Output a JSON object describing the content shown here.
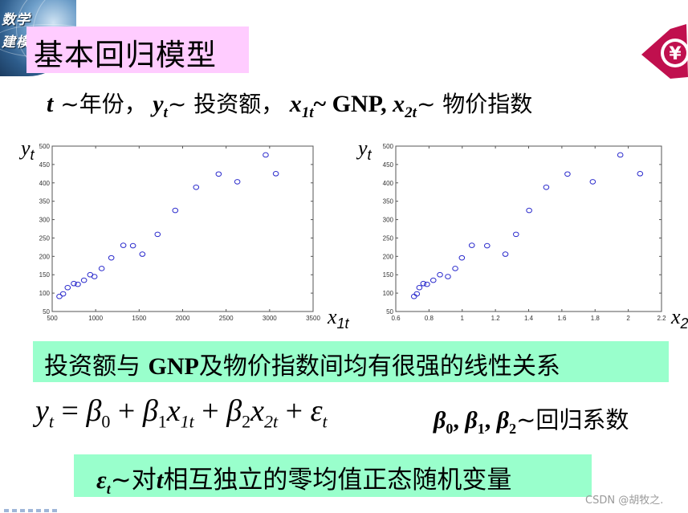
{
  "slide": {
    "corner_badge": {
      "line1": "数学",
      "line2": "建模"
    },
    "title": "基本回归模型",
    "logo_icon": "yuan-currency-logo",
    "definitions": {
      "t_symbol": "t",
      "t_desc": " ~年份，",
      "y_symbol": "y",
      "y_sub": "t",
      "y_desc": "~ 投资额，",
      "x1_symbol": "x",
      "x1_sub": "1t",
      "x1_desc": "~ GNP, ",
      "x2_symbol": "x",
      "x2_sub": "2t",
      "x2_desc": "~ 物价指数"
    },
    "conclusion": {
      "pre": "投资额与 ",
      "gnp": "GNP",
      "post": "及物价指数间均有很强的线性关系"
    },
    "formula": {
      "lhs": "y",
      "lhs_sub": "t",
      "eq": " = ",
      "b0": "β",
      "b0_sub": "0",
      "plus1": " + ",
      "b1": "β",
      "b1_sub": "1",
      "x1": "x",
      "x1_sub": "1t",
      "plus2": " + ",
      "b2": "β",
      "b2_sub": "2",
      "x2": "x",
      "x2_sub": "2t",
      "plus3": " + ",
      "eps": "ε",
      "eps_sub": "t"
    },
    "coefficients": {
      "b0": "β",
      "b0_sub": "0",
      "sep1": ", ",
      "b1": "β",
      "b1_sub": "1",
      "sep2": ", ",
      "b2": "β",
      "b2_sub": "2",
      "desc": "~回归系数"
    },
    "error_note": {
      "eps": "ε",
      "eps_sub": "t",
      "pre": "~对",
      "t": "t",
      "post": "相互独立的零均值正态随机变量"
    },
    "watermark": "CSDN @胡牧之."
  },
  "chart_data": [
    {
      "type": "scatter",
      "title": "",
      "xlabel": "x1t",
      "ylabel": "yt",
      "xlim": [
        500,
        3500
      ],
      "ylim": [
        50,
        500
      ],
      "xticks": [
        500,
        1000,
        1500,
        2000,
        2500,
        3000,
        3500
      ],
      "yticks": [
        50,
        100,
        150,
        200,
        250,
        300,
        350,
        400,
        450,
        500
      ],
      "grid": false,
      "marker": "circle-open",
      "color": "#2a2acc",
      "x": [
        583,
        626,
        678,
        749,
        795,
        866,
        937,
        986,
        1069,
        1180,
        1318,
        1429,
        1537,
        1712,
        1915,
        2155,
        2414,
        2629,
        2955,
        3072
      ],
      "y": [
        91,
        98,
        115,
        126,
        124,
        135,
        150,
        145,
        167,
        196,
        230,
        229,
        206,
        260,
        325,
        388,
        424,
        403,
        476,
        425
      ]
    },
    {
      "type": "scatter",
      "title": "",
      "xlabel": "x2",
      "ylabel": "yt",
      "xlim": [
        0.6,
        2.2
      ],
      "ylim": [
        50,
        500
      ],
      "xticks": [
        0.6,
        0.8,
        1,
        1.2,
        1.4,
        1.6,
        1.8,
        2,
        2.2
      ],
      "yticks": [
        50,
        100,
        150,
        200,
        250,
        300,
        350,
        400,
        450,
        500
      ],
      "grid": false,
      "marker": "circle-open",
      "color": "#2a2acc",
      "x": [
        0.71,
        0.727,
        0.742,
        0.766,
        0.788,
        0.826,
        0.866,
        0.914,
        0.958,
        0.998,
        1.058,
        1.15,
        1.26,
        1.324,
        1.403,
        1.506,
        1.634,
        1.786,
        1.952,
        2.071
      ],
      "y": [
        91,
        98,
        115,
        126,
        124,
        135,
        150,
        145,
        167,
        196,
        230,
        229,
        206,
        260,
        325,
        388,
        424,
        403,
        476,
        425
      ]
    }
  ]
}
